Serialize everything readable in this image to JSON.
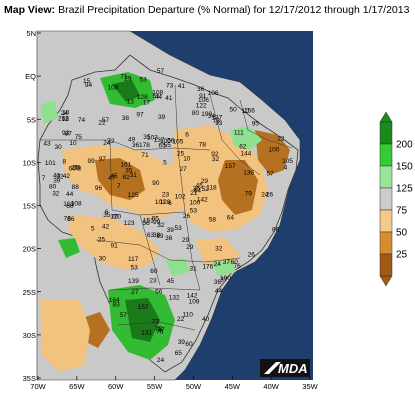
{
  "title_prefix": "Map View:",
  "title_text": "Brazil Precipitation Departure (% Normal) for 12/17/2012 through 1/17/2013",
  "lat_ticks": [
    "5N",
    "EQ",
    "5S",
    "10S",
    "15S",
    "20S",
    "25S",
    "30S",
    "35S"
  ],
  "lon_ticks": [
    "70W",
    "65W",
    "60W",
    "55W",
    "50W",
    "45W",
    "40W",
    "35W"
  ],
  "legend": {
    "labels": [
      "200",
      "150",
      "125",
      "75",
      "50",
      "25"
    ],
    "colors": [
      "#1a8a1a",
      "#33cc33",
      "#99e699",
      "#cccccc",
      "#f5c98a",
      "#d98c2b",
      "#a05a12"
    ]
  },
  "colors": {
    "ocean": "#1e3f6e",
    "land": "#c9c9c9",
    "brown": "#b5711f",
    "tan": "#f2c27f",
    "green_light": "#8fe08f",
    "green": "#33bb33",
    "green_dark": "#1a7a1a",
    "border": "#333333"
  },
  "logo_text": "MDA",
  "station_values": [
    "36",
    "10",
    "99",
    "21",
    "83",
    "106",
    "56",
    "137",
    "26",
    "94",
    "108",
    "63",
    "92",
    "137",
    "27",
    "31",
    "100",
    "64",
    "76",
    "75",
    "44",
    "32",
    "24",
    "4",
    "95",
    "73",
    "101",
    "72",
    "50",
    "164",
    "60",
    "82",
    "96",
    "44",
    "7",
    "100",
    "76",
    "53",
    "100",
    "37",
    "15",
    "22",
    "73",
    "70",
    "92",
    "97",
    "10",
    "91",
    "17",
    "23",
    "56",
    "37",
    "47",
    "99",
    "90",
    "39",
    "102",
    "58",
    "24",
    "26",
    "45",
    "40",
    "108",
    "118",
    "6",
    "39",
    "34",
    "73",
    "5",
    "71",
    "80",
    "36",
    "95",
    "125",
    "12",
    "55",
    "56",
    "29",
    "39",
    "35",
    "53",
    "25",
    "49",
    "64",
    "30",
    "79",
    "93",
    "45",
    "38",
    "91",
    "35",
    "29",
    "88",
    "53",
    "45",
    "10",
    "75",
    "51",
    "57",
    "24",
    "43",
    "26",
    "41",
    "39",
    "5",
    "42",
    "6",
    "31",
    "41",
    "57",
    "106",
    "8",
    "60",
    "60",
    "101",
    "36",
    "29",
    "80",
    "36",
    "43",
    "21",
    "30",
    "39",
    "65",
    "42",
    "24",
    "8",
    "60",
    "44",
    "57",
    "32",
    "27",
    "65",
    "62",
    "142",
    "37",
    "86",
    "103",
    "60",
    "71",
    "157",
    "38",
    "23",
    "22",
    "7",
    "24",
    "157",
    "29",
    "117",
    "103",
    "128",
    "105",
    "78",
    "52",
    "25",
    "122",
    "6",
    "76",
    "100",
    "105",
    "28",
    "132",
    "109",
    "22",
    "32",
    "136",
    "178",
    "161",
    "111",
    "139",
    "110",
    "10",
    "32",
    "128",
    "97",
    "36",
    "57",
    "74",
    "120",
    "13",
    "93",
    "208",
    "123",
    "151",
    "190",
    "86",
    "35",
    "176",
    "53",
    "142",
    "131",
    "108",
    "144",
    "87",
    "156"
  ]
}
